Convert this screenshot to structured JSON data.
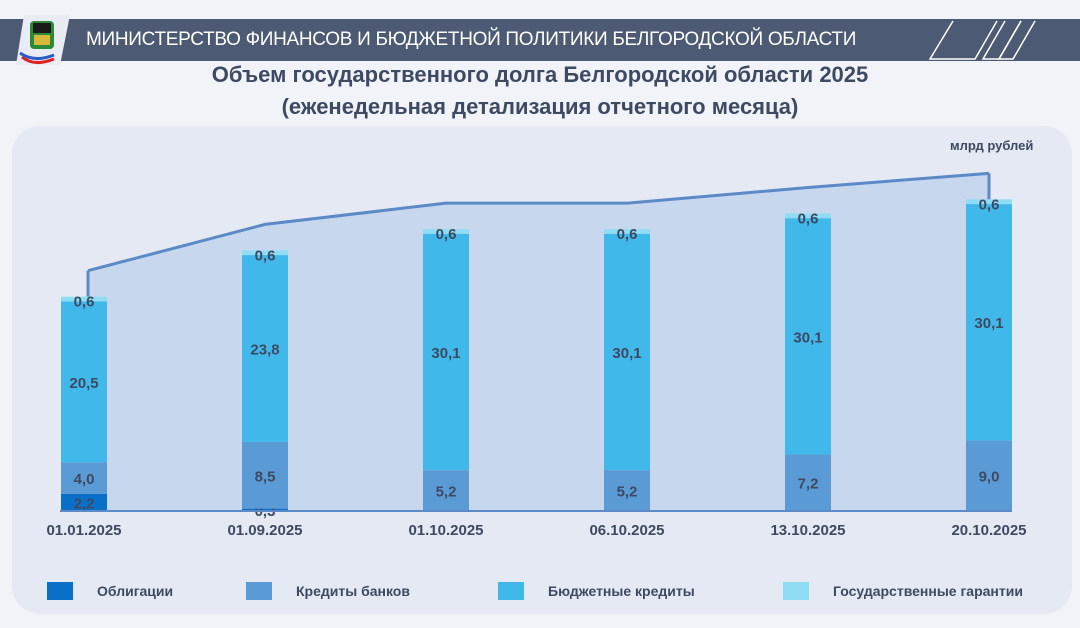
{
  "header": {
    "title": "МИНИСТЕРСТВО ФИНАНСОВ И БЮДЖЕТНОЙ ПОЛИТИКИ БЕЛГОРОДСКОЙ ОБЛАСТИ",
    "logo": "belgorod-coat-of-arms"
  },
  "chart_data": {
    "type": "bar",
    "stacked": true,
    "title": "Объем государственного долга Белгородской области 2025",
    "subtitle": "(еженедельная детализация отчетного месяца)",
    "unit": "млрд рублей",
    "categories": [
      "01.01.2025",
      "01.09.2025",
      "01.10.2025",
      "06.10.2025",
      "13.10.2025",
      "20.10.2025"
    ],
    "series": [
      {
        "name": "Облигации",
        "color": "#0a6fc8",
        "values": [
          2.2,
          0.3,
          0,
          0,
          0,
          0
        ]
      },
      {
        "name": "Кредиты банков",
        "color": "#5b9bd5",
        "values": [
          4.0,
          8.5,
          5.2,
          5.2,
          7.2,
          9.0
        ]
      },
      {
        "name": "Бюджетные кредиты",
        "color": "#41b8ea",
        "values": [
          20.5,
          23.8,
          30.1,
          30.1,
          30.1,
          30.1
        ]
      },
      {
        "name": "Государственные гарантии",
        "color": "#8fdcf5",
        "values": [
          0.6,
          0.6,
          0.6,
          0.6,
          0.6,
          0.6
        ]
      }
    ],
    "labels": [
      [
        "2,2",
        "4,0",
        "20,5",
        "0,6"
      ],
      [
        "0,3",
        "8,5",
        "23,8",
        "0,6"
      ],
      [
        "",
        "5,2",
        "30,1",
        "0,6"
      ],
      [
        "",
        "5,2",
        "30,1",
        "0,6"
      ],
      [
        "",
        "7,2",
        "30,1",
        "0,6"
      ],
      [
        "",
        "9,0",
        "30,1",
        "0,6"
      ]
    ],
    "legend_position": "bottom",
    "grid": false
  }
}
